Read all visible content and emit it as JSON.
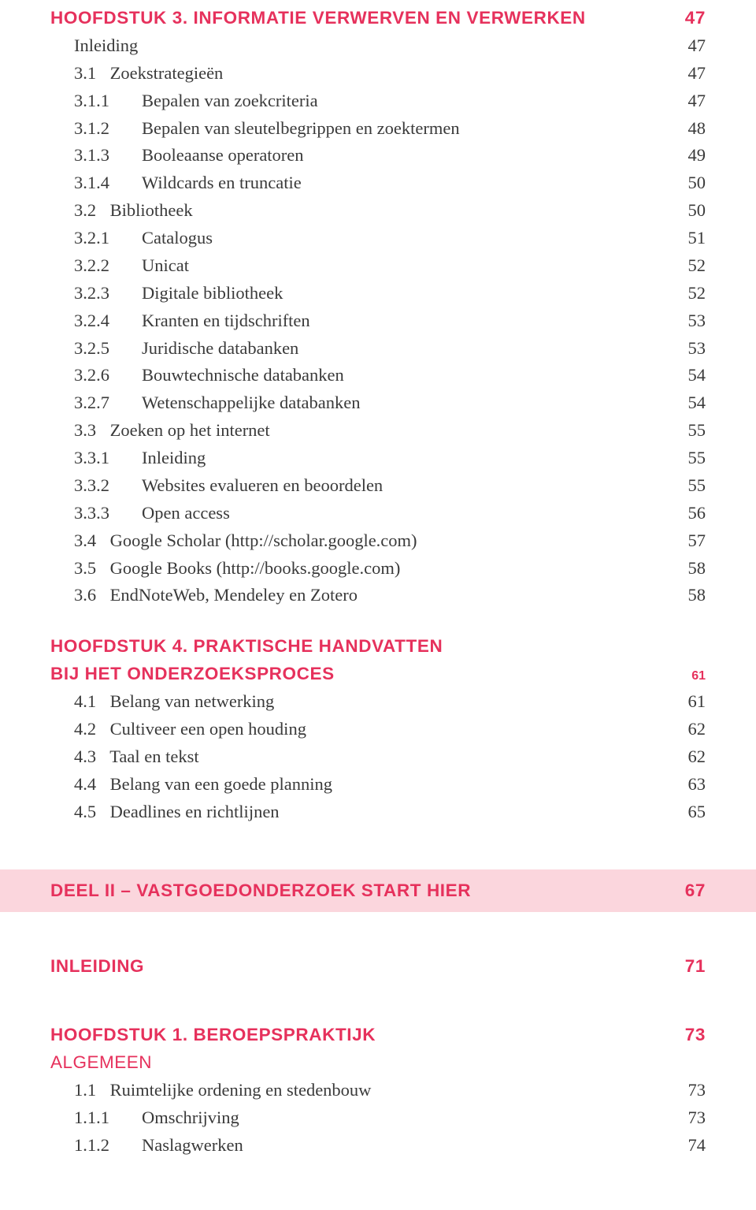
{
  "colors": {
    "accent": "#e6315c",
    "text": "#3a3a3a",
    "part_bg": "#fbd6dd",
    "page_bg": "#ffffff"
  },
  "typography": {
    "heading_font": "sans-serif",
    "body_font": "serif",
    "font_size_pt": 17
  },
  "ch3": {
    "title": "Hoofdstuk 3. Informatie verwerven en verwerken",
    "page": "47",
    "items": [
      {
        "lvl": 0,
        "num": "",
        "text": "Inleiding",
        "page": "47"
      },
      {
        "lvl": 1,
        "num": "3.1",
        "text": "Zoekstrategieën",
        "page": "47"
      },
      {
        "lvl": 2,
        "num": "3.1.1",
        "text": "Bepalen van zoekcriteria",
        "page": "47"
      },
      {
        "lvl": 2,
        "num": "3.1.2",
        "text": "Bepalen van sleutelbegrippen en zoektermen",
        "page": "48"
      },
      {
        "lvl": 2,
        "num": "3.1.3",
        "text": "Booleaanse operatoren",
        "page": "49"
      },
      {
        "lvl": 2,
        "num": "3.1.4",
        "text": "Wildcards en truncatie",
        "page": "50"
      },
      {
        "lvl": 1,
        "num": "3.2",
        "text": "Bibliotheek",
        "page": "50"
      },
      {
        "lvl": 2,
        "num": "3.2.1",
        "text": "Catalogus",
        "page": "51"
      },
      {
        "lvl": 2,
        "num": "3.2.2",
        "text": "Unicat",
        "page": "52"
      },
      {
        "lvl": 2,
        "num": "3.2.3",
        "text": "Digitale bibliotheek",
        "page": "52"
      },
      {
        "lvl": 2,
        "num": "3.2.4",
        "text": "Kranten en tijdschriften",
        "page": "53"
      },
      {
        "lvl": 2,
        "num": "3.2.5",
        "text": "Juridische databanken",
        "page": "53"
      },
      {
        "lvl": 2,
        "num": "3.2.6",
        "text": "Bouwtechnische databanken",
        "page": "54"
      },
      {
        "lvl": 2,
        "num": "3.2.7",
        "text": "Wetenschappelijke databanken",
        "page": "54"
      },
      {
        "lvl": 1,
        "num": "3.3",
        "text": "Zoeken op het internet",
        "page": "55"
      },
      {
        "lvl": 2,
        "num": "3.3.1",
        "text": "Inleiding",
        "page": "55"
      },
      {
        "lvl": 2,
        "num": "3.3.2",
        "text": "Websites evalueren en beoordelen",
        "page": "55"
      },
      {
        "lvl": 2,
        "num": "3.3.3",
        "text": "Open access",
        "page": "56"
      },
      {
        "lvl": 1,
        "num": "3.4",
        "text": "Google Scholar (http://scholar.google.com)",
        "page": "57"
      },
      {
        "lvl": 1,
        "num": "3.5",
        "text": "Google Books (http://books.google.com)",
        "page": "58"
      },
      {
        "lvl": 1,
        "num": "3.6",
        "text": "EndNoteWeb, Mendeley en Zotero",
        "page": "58"
      }
    ]
  },
  "ch4": {
    "title_line1": "Hoofdstuk 4. Praktische handvatten",
    "title_line2": "bij het onderzoeksproces",
    "page": "61",
    "items": [
      {
        "lvl": 1,
        "num": "4.1",
        "text": "Belang van netwerking",
        "page": "61"
      },
      {
        "lvl": 1,
        "num": "4.2",
        "text": "Cultiveer een open houding",
        "page": "62"
      },
      {
        "lvl": 1,
        "num": "4.3",
        "text": "Taal en tekst",
        "page": "62"
      },
      {
        "lvl": 1,
        "num": "4.4",
        "text": "Belang van een goede planning",
        "page": "63"
      },
      {
        "lvl": 1,
        "num": "4.5",
        "text": "Deadlines en richtlijnen",
        "page": "65"
      }
    ]
  },
  "part2": {
    "title": "Deel II – Vastgoedonderzoek start hier",
    "page": "67"
  },
  "inleiding": {
    "title": "Inleiding",
    "page": "71"
  },
  "ch1": {
    "title": "Hoofdstuk 1. Beroepspraktijk",
    "page": "73",
    "subheading": "Algemeen",
    "items": [
      {
        "lvl": 1,
        "num": "1.1",
        "text": "Ruimtelijke ordening en stedenbouw",
        "page": "73"
      },
      {
        "lvl": 2,
        "num": "1.1.1",
        "text": "Omschrijving",
        "page": "73"
      },
      {
        "lvl": 2,
        "num": "1.1.2",
        "text": "Naslagwerken",
        "page": "74"
      }
    ]
  }
}
